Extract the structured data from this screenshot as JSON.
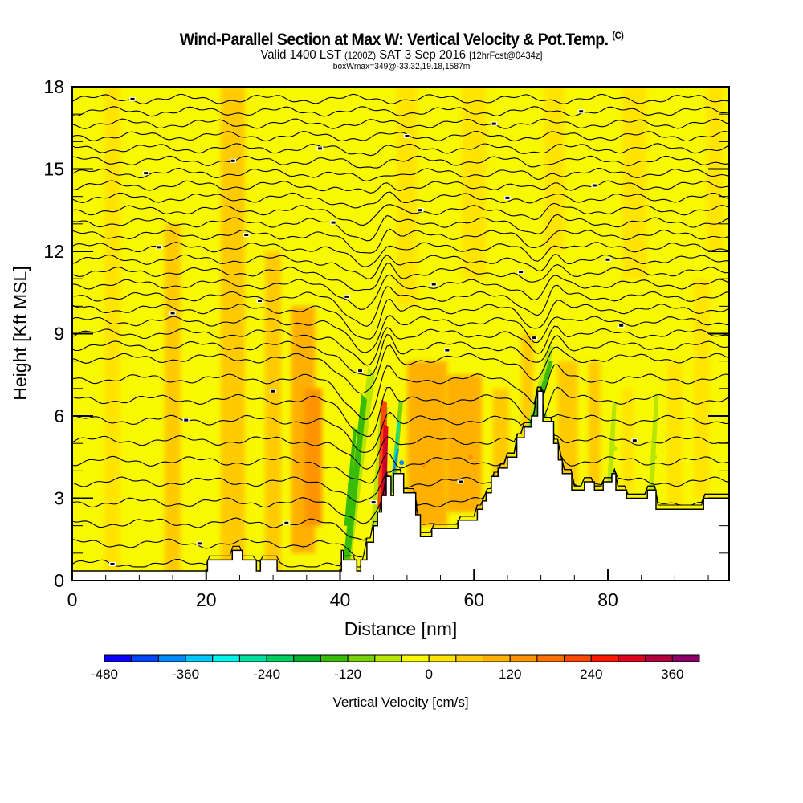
{
  "titles": {
    "main": "Wind-Parallel Section at Max W: Vertical Velocity & Pot.Temp.",
    "copyright": "(C)",
    "valid_prefix": "Valid 1400 LST",
    "valid_utc": "(1200Z)",
    "valid_date": "SAT 3 Sep 2016",
    "forecast": "[12hrFcst@0434z]",
    "boxwmax": "boxWmax=349@-33.32,19.18,1587m"
  },
  "colorbar": {
    "label": "Vertical Velocity [cm/s]",
    "tick_labels": [
      "-480",
      "-360",
      "-240",
      "-120",
      "0",
      "120",
      "240",
      "360"
    ],
    "tick_values": [
      -480,
      -360,
      -240,
      -120,
      0,
      120,
      240,
      360
    ],
    "bins_min": -480,
    "bins_step": 40,
    "colors": [
      "#0a00ff",
      "#0044ff",
      "#0088ff",
      "#00c8ff",
      "#00f4e8",
      "#00e0a0",
      "#00cc60",
      "#00b028",
      "#38bc08",
      "#78d008",
      "#b8e600",
      "#f8f800",
      "#ffe400",
      "#ffca00",
      "#ffb000",
      "#ff9400",
      "#ff7000",
      "#ff4800",
      "#ff1800",
      "#e00020",
      "#b4003c",
      "#8a0068"
    ]
  },
  "chart_data": {
    "type": "heatmap",
    "title": "Wind-Parallel Section at Max W: Vertical Velocity & Pot.Temp.",
    "xlabel": "Distance [nm]",
    "ylabel": "Height [Kft MSL]",
    "xlim": [
      0,
      98.1
    ],
    "ylim": [
      0,
      18
    ],
    "x_ticks": [
      0,
      20,
      40,
      60,
      80
    ],
    "x_tick_labels": [
      "0",
      "20",
      "40",
      "60",
      "80"
    ],
    "x_minor_step": 5,
    "y_ticks": [
      0,
      3,
      6,
      9,
      12,
      15,
      18
    ],
    "y_tick_labels": [
      "0",
      "3",
      "6",
      "9",
      "12",
      "15",
      "18"
    ],
    "y_minor_step": 1,
    "background_value_cm_s": 10,
    "terrain_kft": {
      "x": [
        0,
        20.2,
        20.2,
        23.9,
        23.9,
        25.4,
        25.4,
        27.5,
        27.5,
        28.1,
        28.1,
        30.6,
        30.6,
        40.2,
        40.2,
        40.5,
        40.5,
        42.5,
        42.5,
        43.1,
        43.1,
        44.0,
        44.0,
        45.0,
        45.0,
        45.6,
        45.6,
        46.2,
        46.2,
        46.9,
        46.9,
        47.6,
        47.6,
        48.0,
        48.0,
        49.5,
        49.5,
        51.3,
        51.3,
        52.0,
        52.0,
        53.7,
        53.7,
        57.6,
        57.6,
        60.5,
        60.5,
        61.3,
        61.3,
        61.8,
        61.8,
        62.6,
        62.6,
        63.6,
        63.6,
        65.0,
        65.0,
        66.4,
        66.4,
        67.5,
        67.5,
        68.6,
        68.6,
        69.5,
        69.5,
        70.3,
        70.3,
        71.9,
        71.9,
        72.6,
        72.6,
        73.2,
        73.2,
        74.6,
        74.6,
        75.2,
        75.2,
        76.5,
        76.5,
        78.0,
        78.0,
        79.3,
        79.3,
        80.6,
        80.6,
        81.2,
        81.2,
        82.8,
        82.8,
        85.9,
        85.9,
        87.2,
        87.2,
        89.2,
        89.2,
        94.3,
        94.3,
        98.1
      ],
      "y": [
        0.35,
        0.35,
        0.75,
        0.75,
        1.1,
        1.1,
        0.75,
        0.75,
        0.35,
        0.35,
        0.75,
        0.75,
        0.35,
        0.35,
        1.1,
        1.1,
        0.75,
        0.75,
        0.35,
        0.35,
        0.75,
        0.75,
        1.4,
        1.4,
        2.0,
        2.0,
        2.5,
        2.5,
        3.1,
        3.1,
        3.8,
        3.8,
        3.1,
        3.1,
        3.9,
        3.9,
        3.2,
        3.2,
        2.4,
        2.4,
        1.6,
        1.6,
        1.9,
        1.9,
        2.2,
        2.2,
        2.6,
        2.6,
        2.9,
        2.9,
        3.2,
        3.2,
        3.8,
        3.8,
        4.1,
        4.1,
        4.5,
        4.5,
        5.2,
        5.2,
        5.6,
        5.6,
        6.0,
        6.0,
        6.9,
        6.9,
        5.8,
        5.8,
        5.0,
        5.0,
        4.4,
        4.4,
        3.9,
        3.9,
        3.3,
        3.3,
        3.3,
        3.3,
        3.6,
        3.6,
        3.3,
        3.3,
        3.6,
        3.6,
        3.9,
        3.9,
        3.3,
        3.3,
        3.0,
        3.0,
        3.3,
        3.3,
        2.6,
        2.6,
        2.6,
        2.6,
        3.0,
        3.0
      ]
    },
    "vertical_velocity_features": [
      {
        "name": "main-updraft-core",
        "x_nm": 47.0,
        "z_kft": 3.8,
        "w_cm_s": 349
      },
      {
        "name": "lee-downdraft-core",
        "x_nm": 49.2,
        "z_kft": 4.3,
        "w_cm_s": -400
      },
      {
        "name": "upstream-downdraft-band",
        "x_nm": 41.5,
        "z_kft": 3.5,
        "w_cm_s": -140
      },
      {
        "name": "upstream-updraft-band",
        "x_nm": 35.5,
        "z_kft": 4.5,
        "w_cm_s": 120
      },
      {
        "name": "plateau-updraft-1",
        "x_nm": 52.5,
        "z_kft": 4.2,
        "w_cm_s": 120
      },
      {
        "name": "plateau-updraft-2",
        "x_nm": 59.5,
        "z_kft": 4.5,
        "w_cm_s": 130
      },
      {
        "name": "peak-downdraft",
        "x_nm": 70.5,
        "z_kft": 6.0,
        "w_cm_s": -160
      },
      {
        "name": "east-downdraft-1",
        "x_nm": 81.0,
        "z_kft": 4.8,
        "w_cm_s": -80
      },
      {
        "name": "east-downdraft-2",
        "x_nm": 87.0,
        "z_kft": 4.5,
        "w_cm_s": -60
      }
    ],
    "potential_temperature_contours": {
      "count": 32,
      "label_note": "contour labels present but illegible at this resolution"
    }
  }
}
